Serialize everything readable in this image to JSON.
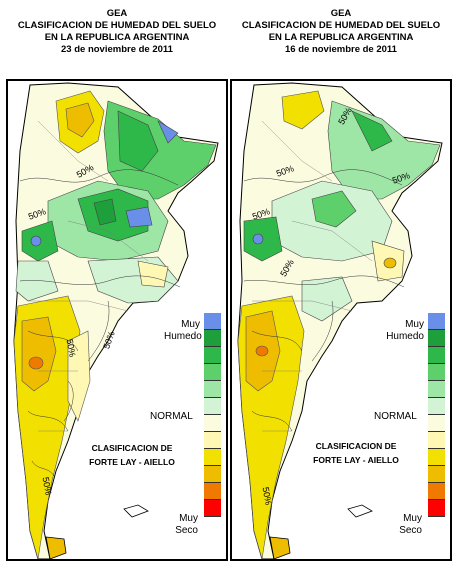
{
  "maps": [
    {
      "header": {
        "org": "GEA",
        "title": "CLASIFICACION DE HUMEDAD DEL SUELO",
        "region": "EN LA REPUBLICA ARGENTINA",
        "date": "23 de noviembre de 2011"
      },
      "contour_labels": [
        "50%",
        "50%",
        "50%",
        "50%",
        "50%"
      ],
      "legend": {
        "wet_label": "Muy\nHumedo",
        "normal_label": "NORMAL",
        "dry_label": "Muy\nSeco",
        "classification_line1": "CLASIFICACION DE",
        "classification_line2": "FORTE LAY - AIELLO"
      }
    },
    {
      "header": {
        "org": "GEA",
        "title": "CLASIFICACION DE HUMEDAD DEL SUELO",
        "region": "EN LA REPUBLICA ARGENTINA",
        "date": "16 de noviembre de 2011"
      },
      "contour_labels": [
        "50%",
        "50%",
        "50%",
        "50%",
        "50%",
        "50%"
      ],
      "legend": {
        "wet_label": "Muy\nHumedo",
        "normal_label": "NORMAL",
        "dry_label": "Muy\nSeco",
        "classification_line1": "CLASIFICACION DE",
        "classification_line2": "FORTE LAY - AIELLO"
      }
    }
  ],
  "legend_colors": [
    "#6a8fe8",
    "#1f9e3c",
    "#2eb84a",
    "#5ed06b",
    "#9ee6a6",
    "#d3f3d5",
    "#fbfbe0",
    "#fff8b4",
    "#f2e100",
    "#eebd00",
    "#f07a00",
    "#ff0000"
  ]
}
